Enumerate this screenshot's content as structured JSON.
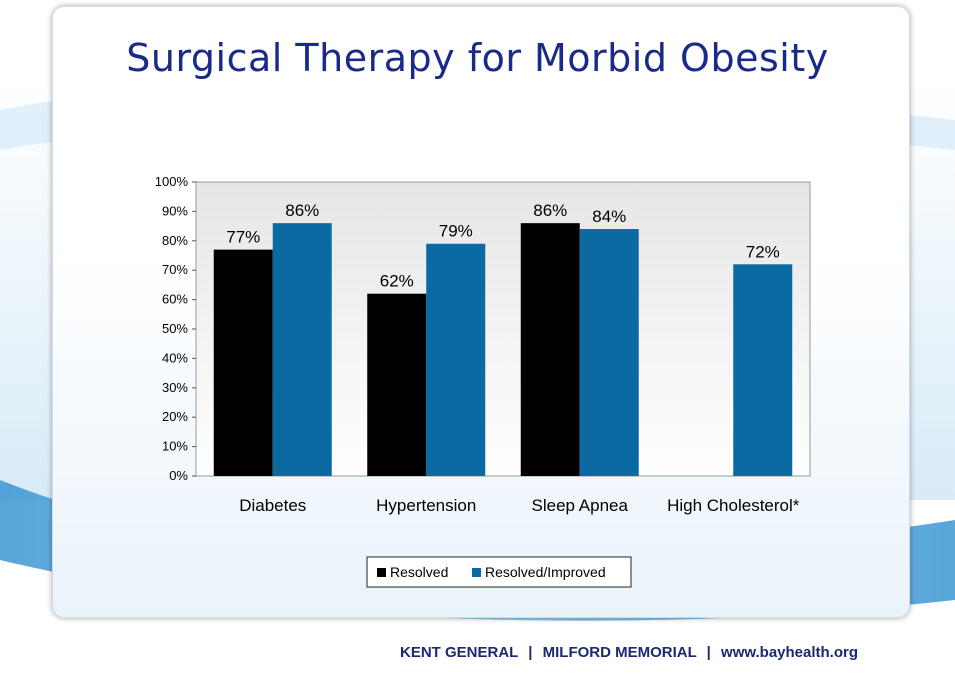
{
  "slide": {
    "title": "Surgical Therapy for Morbid Obesity"
  },
  "footer": {
    "hospital_1": "KENT GENERAL",
    "separator": "|",
    "hospital_2": "MILFORD MEMORIAL",
    "url": "www.bayhealth.org"
  },
  "chart_data": {
    "type": "bar",
    "categories": [
      "Diabetes",
      "Hypertension",
      "Sleep Apnea",
      "High Cholesterol*"
    ],
    "series": [
      {
        "name": "Resolved",
        "values": [
          77,
          62,
          86,
          null
        ],
        "labels": [
          "77%",
          "62%",
          "86%",
          ""
        ],
        "color": "#000000"
      },
      {
        "name": "Resolved/Improved",
        "values": [
          86,
          79,
          84,
          72
        ],
        "labels": [
          "86%",
          "79%",
          "84%",
          "72%"
        ],
        "color": "#0a6aa1"
      }
    ],
    "ylim": [
      0,
      100
    ],
    "yticks": [
      "0%",
      "10%",
      "20%",
      "30%",
      "40%",
      "50%",
      "60%",
      "70%",
      "80%",
      "90%",
      "100%"
    ],
    "legend_position": "bottom",
    "grid": false
  },
  "colors": {
    "title": "#1a2a8a",
    "plot_bg_top": "#e6e6e6",
    "plot_bg_bottom": "#ffffff",
    "wave": "#4a9fd5"
  }
}
